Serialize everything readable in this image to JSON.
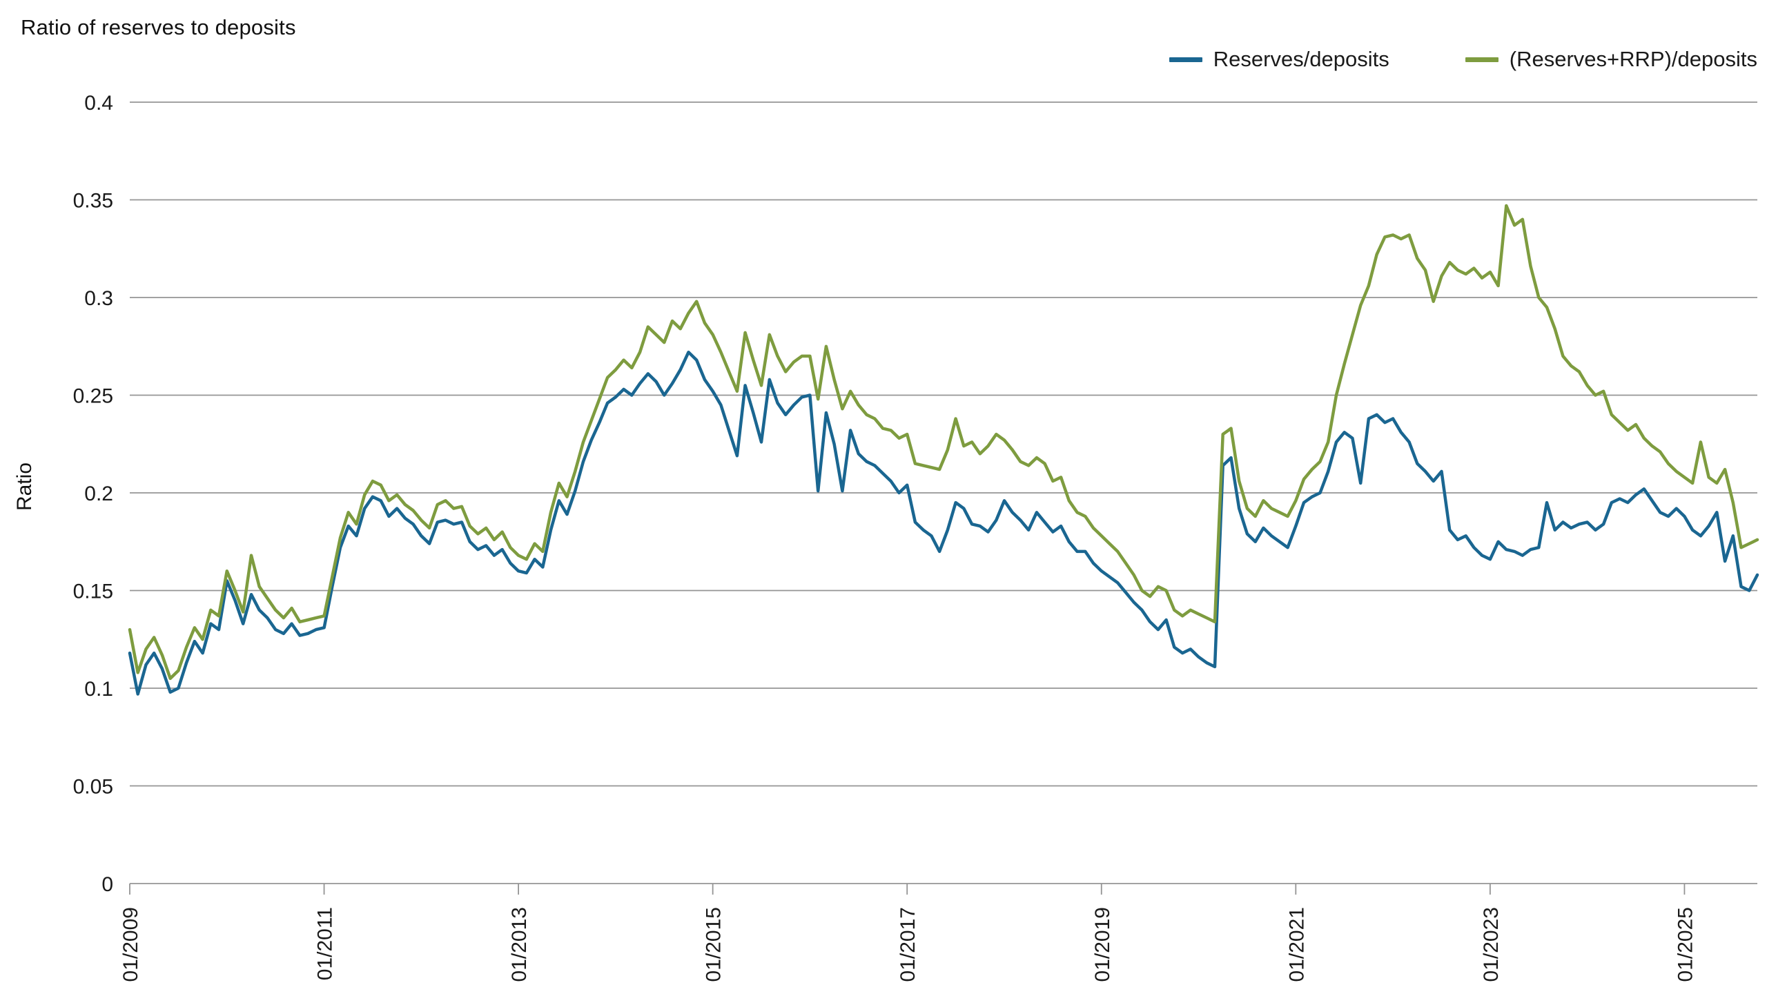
{
  "title": "Ratio of reserves to deposits",
  "y_axis_label": "Ratio",
  "chart_data": {
    "type": "line",
    "title": "Ratio of reserves to deposits",
    "xlabel": "",
    "ylabel": "Ratio",
    "x_unit": "month",
    "x_start": "01/2009",
    "x_end": "10/2025",
    "ylim": [
      0,
      0.4
    ],
    "yticks": [
      "0",
      "0.05",
      "0.1",
      "0.15",
      "0.2",
      "0.25",
      "0.3",
      "0.35",
      "0.4"
    ],
    "xticks": [
      {
        "label": "01/2009",
        "index": 0
      },
      {
        "label": "01/2011",
        "index": 24
      },
      {
        "label": "01/2013",
        "index": 48
      },
      {
        "label": "01/2015",
        "index": 72
      },
      {
        "label": "01/2017",
        "index": 96
      },
      {
        "label": "01/2019",
        "index": 120
      },
      {
        "label": "01/2021",
        "index": 144
      },
      {
        "label": "01/2023",
        "index": 168
      },
      {
        "label": "01/2025",
        "index": 192
      }
    ],
    "grid": "horizontal",
    "legend_position": "top-right",
    "series": [
      {
        "name": "Reserves/deposits",
        "color": "#1a6691",
        "values": [
          0.118,
          0.097,
          0.112,
          0.118,
          0.11,
          0.098,
          0.1,
          0.113,
          0.124,
          0.118,
          0.133,
          0.13,
          0.155,
          0.145,
          0.133,
          0.148,
          0.14,
          0.136,
          0.13,
          0.128,
          0.133,
          0.127,
          0.128,
          0.13,
          0.131,
          0.152,
          0.172,
          0.183,
          0.178,
          0.192,
          0.198,
          0.196,
          0.188,
          0.192,
          0.187,
          0.184,
          0.178,
          0.174,
          0.185,
          0.186,
          0.184,
          0.185,
          0.175,
          0.171,
          0.173,
          0.168,
          0.171,
          0.164,
          0.16,
          0.159,
          0.166,
          0.162,
          0.181,
          0.196,
          0.189,
          0.201,
          0.216,
          0.227,
          0.236,
          0.246,
          0.249,
          0.253,
          0.25,
          0.256,
          0.261,
          0.257,
          0.25,
          0.256,
          0.263,
          0.272,
          0.268,
          0.258,
          0.252,
          0.245,
          0.232,
          0.219,
          0.255,
          0.241,
          0.226,
          0.258,
          0.246,
          0.24,
          0.245,
          0.249,
          0.25,
          0.201,
          0.241,
          0.225,
          0.201,
          0.232,
          0.22,
          0.216,
          0.214,
          0.21,
          0.206,
          0.2,
          0.204,
          0.185,
          0.181,
          0.178,
          0.17,
          0.181,
          0.195,
          0.192,
          0.184,
          0.183,
          0.18,
          0.186,
          0.196,
          0.19,
          0.186,
          0.181,
          0.19,
          0.185,
          0.18,
          0.183,
          0.175,
          0.17,
          0.17,
          0.164,
          0.16,
          0.157,
          0.154,
          0.149,
          0.144,
          0.14,
          0.134,
          0.13,
          0.135,
          0.121,
          0.118,
          0.12,
          0.116,
          0.113,
          0.111,
          0.214,
          0.218,
          0.192,
          0.179,
          0.175,
          0.182,
          0.178,
          0.175,
          0.172,
          0.183,
          0.195,
          0.198,
          0.2,
          0.211,
          0.226,
          0.231,
          0.228,
          0.205,
          0.238,
          0.24,
          0.236,
          0.238,
          0.231,
          0.226,
          0.215,
          0.211,
          0.206,
          0.211,
          0.181,
          0.176,
          0.178,
          0.172,
          0.168,
          0.166,
          0.175,
          0.171,
          0.17,
          0.168,
          0.171,
          0.172,
          0.195,
          0.181,
          0.185,
          0.182,
          0.184,
          0.185,
          0.181,
          0.184,
          0.195,
          0.197,
          0.195,
          0.199,
          0.202,
          0.196,
          0.19,
          0.188,
          0.192,
          0.188,
          0.181,
          0.178,
          0.183,
          0.19,
          0.165,
          0.178,
          0.152,
          0.15,
          0.158
        ]
      },
      {
        "name": "(Reserves+RRP)/deposits",
        "color": "#7e9c3f",
        "values": [
          0.13,
          0.108,
          0.12,
          0.126,
          0.117,
          0.105,
          0.109,
          0.121,
          0.131,
          0.125,
          0.14,
          0.137,
          0.16,
          0.15,
          0.139,
          0.168,
          0.152,
          0.146,
          0.14,
          0.136,
          0.141,
          0.134,
          0.135,
          0.136,
          0.137,
          0.157,
          0.177,
          0.19,
          0.184,
          0.199,
          0.206,
          0.204,
          0.196,
          0.199,
          0.194,
          0.191,
          0.186,
          0.182,
          0.194,
          0.196,
          0.192,
          0.193,
          0.183,
          0.179,
          0.182,
          0.176,
          0.18,
          0.172,
          0.168,
          0.166,
          0.174,
          0.17,
          0.19,
          0.205,
          0.198,
          0.211,
          0.226,
          0.237,
          0.248,
          0.259,
          0.263,
          0.268,
          0.264,
          0.272,
          0.285,
          0.281,
          0.277,
          0.288,
          0.284,
          0.292,
          0.298,
          0.287,
          0.281,
          0.272,
          0.262,
          0.252,
          0.282,
          0.268,
          0.255,
          0.281,
          0.27,
          0.262,
          0.267,
          0.27,
          0.27,
          0.248,
          0.275,
          0.258,
          0.243,
          0.252,
          0.245,
          0.24,
          0.238,
          0.233,
          0.232,
          0.228,
          0.23,
          0.215,
          0.214,
          0.213,
          0.212,
          0.222,
          0.238,
          0.224,
          0.226,
          0.22,
          0.224,
          0.23,
          0.227,
          0.222,
          0.216,
          0.214,
          0.218,
          0.215,
          0.206,
          0.208,
          0.196,
          0.19,
          0.188,
          0.182,
          0.178,
          0.174,
          0.17,
          0.164,
          0.158,
          0.15,
          0.147,
          0.152,
          0.15,
          0.14,
          0.137,
          0.14,
          0.138,
          0.136,
          0.134,
          0.23,
          0.233,
          0.206,
          0.192,
          0.188,
          0.196,
          0.192,
          0.19,
          0.188,
          0.196,
          0.207,
          0.212,
          0.216,
          0.226,
          0.25,
          0.266,
          0.281,
          0.296,
          0.306,
          0.322,
          0.331,
          0.332,
          0.33,
          0.332,
          0.32,
          0.314,
          0.298,
          0.311,
          0.318,
          0.314,
          0.312,
          0.315,
          0.31,
          0.313,
          0.306,
          0.347,
          0.337,
          0.34,
          0.316,
          0.3,
          0.295,
          0.284,
          0.27,
          0.265,
          0.262,
          0.255,
          0.25,
          0.252,
          0.24,
          0.236,
          0.232,
          0.235,
          0.228,
          0.224,
          0.221,
          0.215,
          0.211,
          0.208,
          0.205,
          0.226,
          0.208,
          0.205,
          0.212,
          0.195,
          0.172,
          0.174,
          0.176
        ]
      }
    ]
  }
}
